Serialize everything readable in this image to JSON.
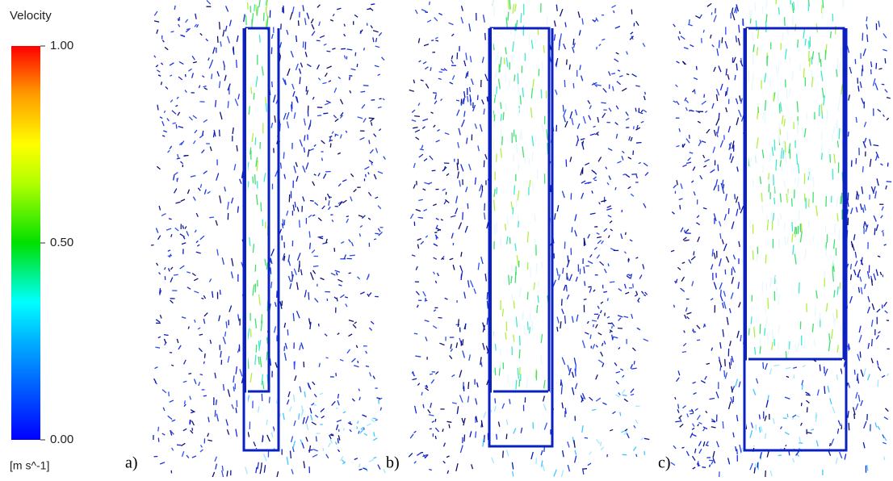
{
  "colorbar": {
    "title": "Velocity",
    "unit": "[m s^-1]",
    "lim": [
      0,
      1
    ],
    "ticks": [
      {
        "value": 1,
        "label": "1.00"
      },
      {
        "value": 0.5,
        "label": "0.50"
      },
      {
        "value": 0,
        "label": "0.00"
      }
    ]
  },
  "panels": [
    {
      "label": "a)"
    },
    {
      "label": "b)"
    },
    {
      "label": "c)"
    }
  ]
}
